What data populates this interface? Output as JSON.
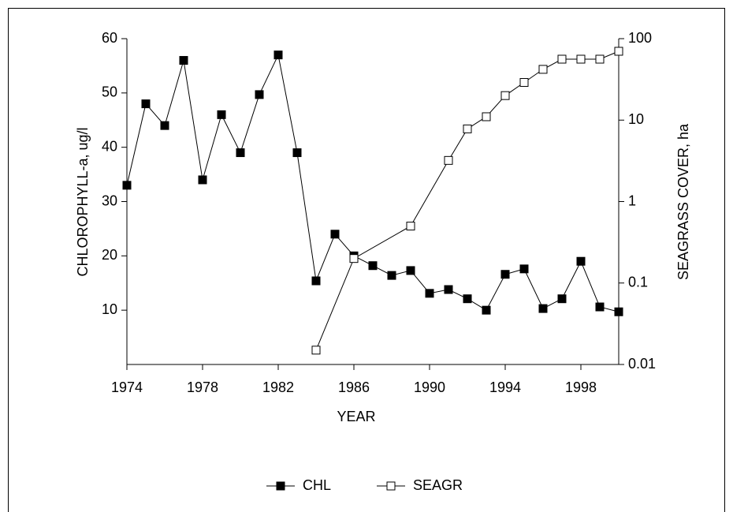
{
  "chart_data": {
    "type": "line",
    "x_label": "YEAR",
    "y_label": "CHLOROPHYLL-a, ug/l",
    "y2_label": "SEAGRASS COVER, ha",
    "xlim": [
      1974,
      2000
    ],
    "xticks": [
      1974,
      1978,
      1982,
      1986,
      1990,
      1994,
      1998
    ],
    "ylim": [
      0,
      60
    ],
    "yticks": [
      10,
      20,
      30,
      40,
      50,
      60
    ],
    "y2lim": [
      0.01,
      100
    ],
    "y2ticks": [
      0.01,
      0.1,
      1,
      10,
      100
    ],
    "y2_log": true,
    "legend": "bottom",
    "series": [
      {
        "name": "CHL",
        "color": "#000000",
        "marker": "filled-square",
        "x": [
          1974,
          1975,
          1976,
          1977,
          1978,
          1979,
          1980,
          1981,
          1982,
          1983,
          1984,
          1985,
          1986,
          1987,
          1988,
          1989,
          1990,
          1991,
          1992,
          1993,
          1994,
          1995,
          1996,
          1997,
          1998,
          1999,
          2000
        ],
        "values": [
          33,
          48,
          44,
          56,
          34,
          46,
          39,
          49.7,
          57,
          39,
          15.4,
          24,
          20,
          18.2,
          16.4,
          17.3,
          13.1,
          13.8,
          12.1,
          10,
          16.6,
          17.6,
          10.3,
          12.1,
          19,
          10.6,
          9.7
        ]
      },
      {
        "name": "SEAGR",
        "color": "#000000",
        "marker": "open-square",
        "axis": "y2",
        "x": [
          1984,
          1986,
          1989,
          1991,
          1992,
          1993,
          1994,
          1995,
          1996,
          1997,
          1998,
          1999,
          2000
        ],
        "values": [
          0.015,
          0.2,
          0.5,
          3.2,
          7.8,
          11,
          20,
          29,
          42,
          56,
          56,
          56,
          70
        ]
      }
    ]
  }
}
